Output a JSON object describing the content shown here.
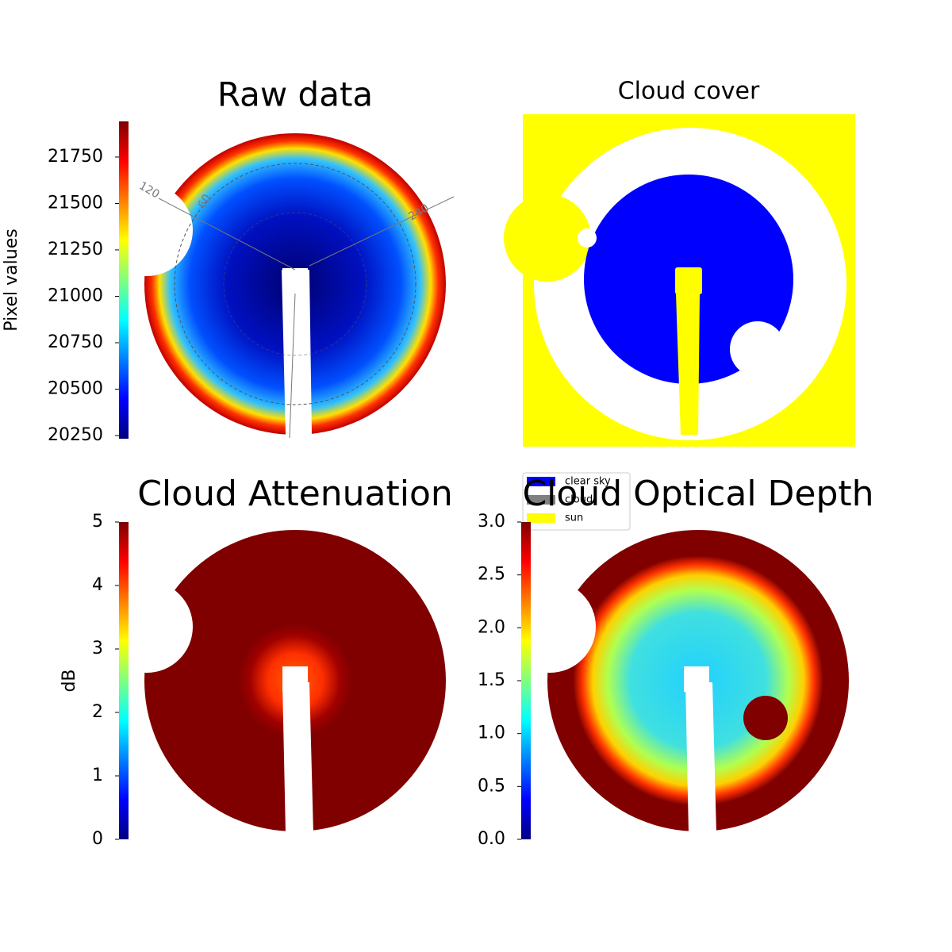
{
  "chart_data": [
    {
      "type": "image",
      "title": "Raw data",
      "colorbar_label": "Pixel values",
      "colormap": "jet",
      "ylim": [
        20233,
        21942
      ],
      "yticks": [
        20250,
        20500,
        20750,
        21000,
        21250,
        21500,
        21750
      ],
      "polar_labels": [
        "120",
        "60",
        "240"
      ]
    },
    {
      "type": "image",
      "title": "Cloud cover",
      "legend": [
        {
          "name": "clear sky",
          "color": "#0000ff"
        },
        {
          "name": "cloud",
          "color": "#808080"
        },
        {
          "name": "sun",
          "color": "#ffff00"
        }
      ]
    },
    {
      "type": "image",
      "title": "Cloud Attenuation",
      "colorbar_label": "dB",
      "colormap": "jet",
      "ylim": [
        0,
        5
      ],
      "yticks": [
        0,
        1,
        2,
        3,
        4,
        5
      ]
    },
    {
      "type": "image",
      "title": "Cloud Optical Depth",
      "colormap": "jet",
      "ylim": [
        0,
        3
      ],
      "yticks": [
        {
          "value": 0,
          "label": "0.0"
        },
        {
          "value": 0.5,
          "label": "0.5"
        },
        {
          "value": 1,
          "label": "1.0"
        },
        {
          "value": 1.5,
          "label": "1.5"
        },
        {
          "value": 2,
          "label": "2.0"
        },
        {
          "value": 2.5,
          "label": "2.5"
        },
        {
          "value": 3,
          "label": "3.0"
        }
      ]
    }
  ]
}
